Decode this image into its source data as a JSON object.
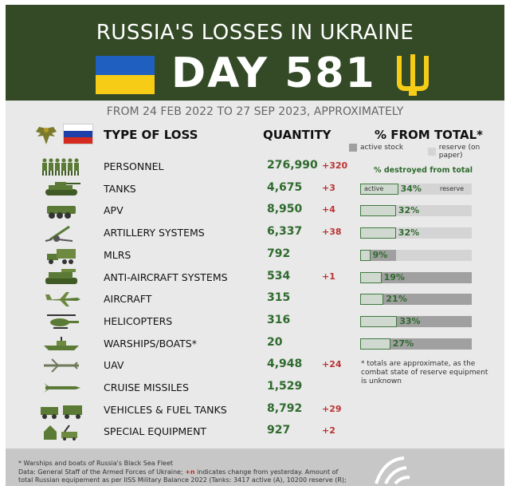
{
  "header": {
    "title": "RUSSIA'S LOSSES IN UKRAINE",
    "day_label": "DAY 581",
    "flag_colors": {
      "top": "#1f5fbf",
      "bottom": "#f6cc17"
    },
    "background": "#344a27"
  },
  "period": "FROM 24 FEB 2022 TO 27 SEP 2023, APPROXIMATELY",
  "columns": {
    "type": "TYPE OF LOSS",
    "quantity": "QUANTITY",
    "percent": "% FROM TOTAL*"
  },
  "legend": {
    "active": "active stock",
    "reserve": "reserve (on paper)"
  },
  "destroyed_label": "% destroyed from total",
  "tanks_bar_labels": {
    "active": "active",
    "reserve": "reserve"
  },
  "rows": [
    {
      "icon": "soldiers-icon",
      "name": "PERSONNEL",
      "qty": "276,990",
      "chg": "+320"
    },
    {
      "icon": "tank-icon",
      "name": "TANKS",
      "qty": "4,675",
      "chg": "+3",
      "percent": "34%",
      "destroyed": 0.34,
      "active": 0.34,
      "reserve": 0.66
    },
    {
      "icon": "apv-icon",
      "name": "APV",
      "qty": "8,950",
      "chg": "+4",
      "percent": "32%",
      "destroyed": 0.32,
      "active": 0.32,
      "reserve": 0.68
    },
    {
      "icon": "artillery-icon",
      "name": "ARTILLERY SYSTEMS",
      "qty": "6,337",
      "chg": "+38",
      "percent": "32%",
      "destroyed": 0.32,
      "active": 0.32,
      "reserve": 0.68
    },
    {
      "icon": "mlrs-icon",
      "name": "MLRS",
      "qty": "792",
      "chg": "",
      "percent": "9%",
      "destroyed": 0.09,
      "active": 0.32,
      "reserve": 0.68
    },
    {
      "icon": "anti-aircraft-icon",
      "name": "ANTI-AIRCRAFT SYSTEMS",
      "qty": "534",
      "chg": "+1",
      "percent": "19%",
      "destroyed": 0.19,
      "active": 1.0,
      "reserve": 0.0
    },
    {
      "icon": "aircraft-icon",
      "name": "AIRCRAFT",
      "qty": "315",
      "chg": "",
      "percent": "21%",
      "destroyed": 0.21,
      "active": 1.0,
      "reserve": 0.0
    },
    {
      "icon": "helicopter-icon",
      "name": "HELICOPTERS",
      "qty": "316",
      "chg": "",
      "percent": "33%",
      "destroyed": 0.33,
      "active": 1.0,
      "reserve": 0.0
    },
    {
      "icon": "warship-icon",
      "name": "WARSHIPS/BOATS*",
      "qty": "20",
      "chg": "",
      "percent": "27%",
      "destroyed": 0.27,
      "active": 1.0,
      "reserve": 0.0
    },
    {
      "icon": "uav-icon",
      "name": "UAV",
      "qty": "4,948",
      "chg": "+24"
    },
    {
      "icon": "cruise-missile-icon",
      "name": "CRUISE MISSILES",
      "qty": "1,529",
      "chg": ""
    },
    {
      "icon": "trucks-icon",
      "name": "VEHICLES & FUEL TANKS",
      "qty": "8,792",
      "chg": "+29"
    },
    {
      "icon": "special-equipment-icon",
      "name": "SPECIAL EQUIPMENT",
      "qty": "927",
      "chg": "+2"
    }
  ],
  "note": "* totals are approximate, as the combat state of reserve equipment is unknown",
  "footer": {
    "line1": "* Warships and boats of Russia's Black Sea Fleet",
    "line2_a": "Data: General Staff of the Armed Forces of Ukraine; ",
    "line2_red": "+n",
    "line2_b": " indicates change from yesterday. Amount of",
    "line3": "total Russian equipement as per IISS Military Balance 2022 (Tanks: 3417 active (A), 10200 reserve (R);"
  },
  "colors": {
    "green_text": "#2f6a2f",
    "change_red": "#b33333",
    "panel_bg": "#e9e9e9"
  }
}
